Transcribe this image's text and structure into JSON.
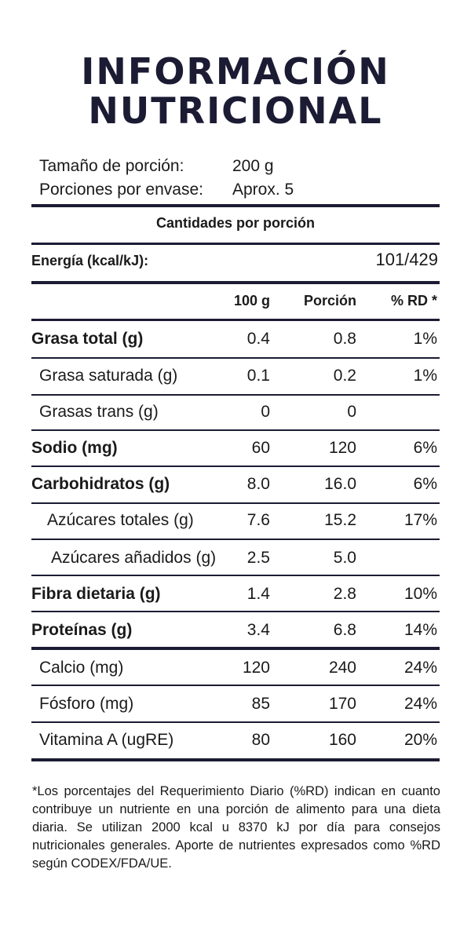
{
  "title_line1": "INFORMACIÓN",
  "title_line2": "NUTRICIONAL",
  "serving": {
    "size_label": "Tamaño de porción:",
    "size_value": "200 g",
    "servings_label": "Porciones por envase:",
    "servings_value": "Aprox. 5"
  },
  "amounts_header": "Cantidades por porción",
  "energy": {
    "label": "Energía (kcal/kJ):",
    "value": "101/429"
  },
  "columns": {
    "per100": "100 g",
    "portion": "Porción",
    "rd": "% RD *"
  },
  "rows": [
    {
      "label": "Grasa total (g)",
      "per100": "0.4",
      "portion": "0.8",
      "rd": "1%"
    },
    {
      "label": "Grasa saturada (g)",
      "per100": "0.1",
      "portion": "0.2",
      "rd": "1%"
    },
    {
      "label": "Grasas trans (g)",
      "per100": "0",
      "portion": "0",
      "rd": ""
    },
    {
      "label": "Sodio (mg)",
      "per100": "60",
      "portion": "120",
      "rd": "6%"
    },
    {
      "label": "Carbohidratos (g)",
      "per100": "8.0",
      "portion": "16.0",
      "rd": "6%"
    },
    {
      "label": "Azúcares totales (g)",
      "per100": "7.6",
      "portion": "15.2",
      "rd": "17%"
    },
    {
      "label": "Azúcares añadidos (g)",
      "per100": "2.5",
      "portion": "5.0",
      "rd": ""
    },
    {
      "label": "Fibra dietaria (g)",
      "per100": "1.4",
      "portion": "2.8",
      "rd": "10%"
    },
    {
      "label": "Proteínas (g)",
      "per100": "3.4",
      "portion": "6.8",
      "rd": "14%"
    },
    {
      "label": "Calcio (mg)",
      "per100": "120",
      "portion": "240",
      "rd": "24%"
    },
    {
      "label": "Fósforo (mg)",
      "per100": "85",
      "portion": "170",
      "rd": "24%"
    },
    {
      "label": "Vitamina A (ugRE)",
      "per100": "80",
      "portion": "160",
      "rd": "20%"
    }
  ],
  "footnote": "*Los porcentajes del Requerimiento Diario (%RD) indican en cuanto contribuye un nutriente en una porción de alimento para una dieta diaria. Se utilizan 2000 kcal u 8370 kJ por día para consejos nutricionales generales. Aporte de nutrientes expresados como %RD según CODEX/FDA/UE."
}
